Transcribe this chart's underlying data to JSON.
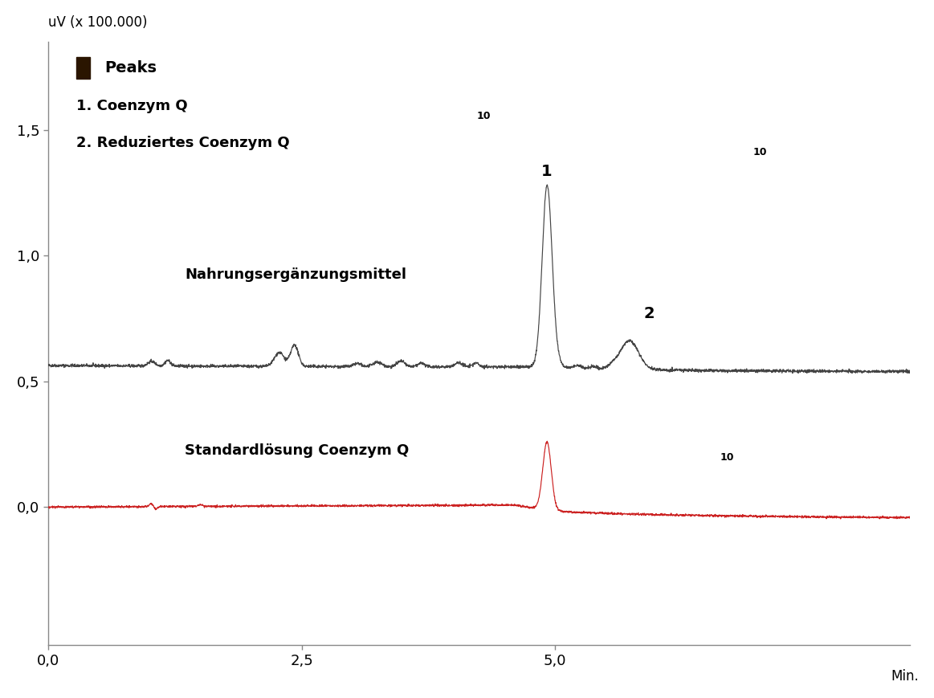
{
  "ylabel": "uV (x 100.000)",
  "xlabel_end": "Min.",
  "yticks": [
    0.0,
    0.5,
    1.0,
    1.5
  ],
  "ytick_labels": [
    "0,0",
    "0,5",
    "1,0",
    "1,5"
  ],
  "xmin": 0.0,
  "xmax": 8.5,
  "ymin": -0.55,
  "ymax": 1.85,
  "black_line_baseline": 0.555,
  "red_line_baseline": 0.0,
  "legend_title": "Peaks",
  "legend_line1_main": "1. Coenzym Q",
  "legend_line1_sub": "10",
  "legend_line2_main": "2. Reduziertes Coenzym Q",
  "legend_line2_sub": "10",
  "label_nahrung": "Nahrungsergänzungsmittel",
  "label_standard_main": "Standardlösung Coenzym Q",
  "label_standard_sub": "10",
  "black_color": "#444444",
  "red_color": "#cc2222",
  "background_color": "#ffffff",
  "peak1_x": 4.92,
  "peak1_height_black": 0.7,
  "peak2_x": 5.73,
  "peak2_height_black": 0.115,
  "red_peak_x": 4.92,
  "red_peak_height": 0.27,
  "legend_square_color": "#2a1500"
}
